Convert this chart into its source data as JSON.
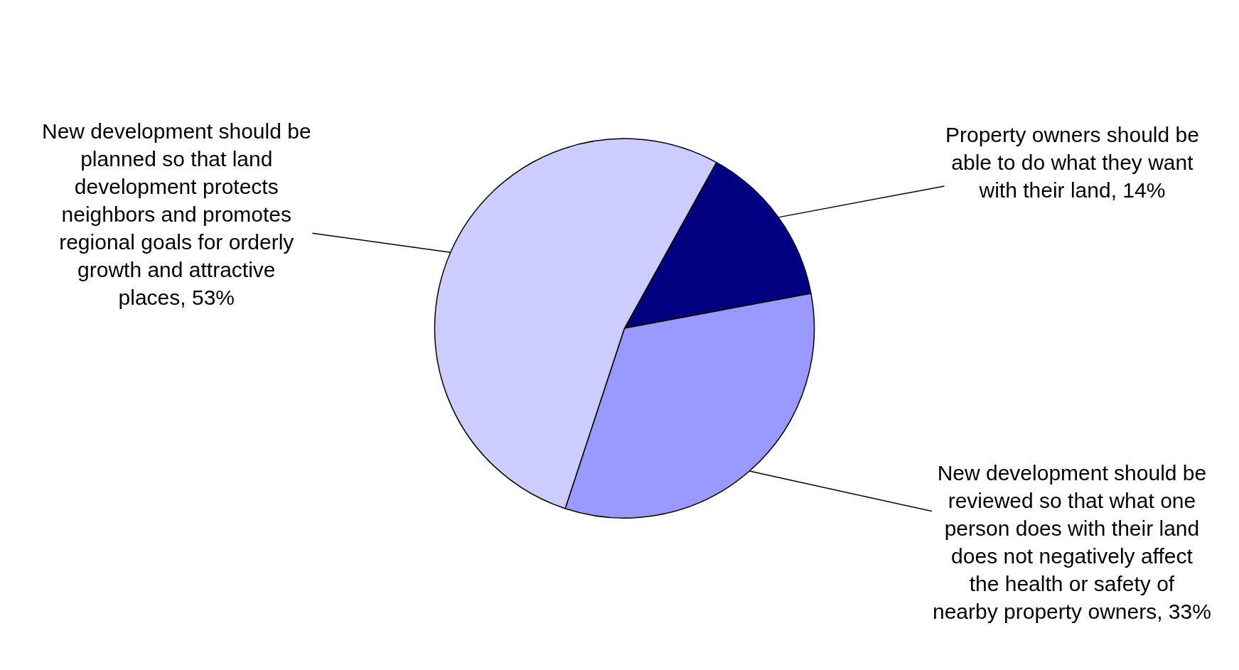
{
  "chart_data": {
    "type": "pie",
    "categories": [
      "Property owners should be able to do what they want with their land",
      "New development should be reviewed so that what one person does with their land does not negatively affect the health or safety of nearby property owners",
      "New development should be planned so that land development protects neighbors and promotes regional goals for orderly growth and attractive places"
    ],
    "values": [
      14,
      33,
      53
    ],
    "colors": [
      "#000080",
      "#9999ff",
      "#ccccff"
    ],
    "value_labels": [
      "14%",
      "33%",
      "53%"
    ],
    "legend": false
  }
}
